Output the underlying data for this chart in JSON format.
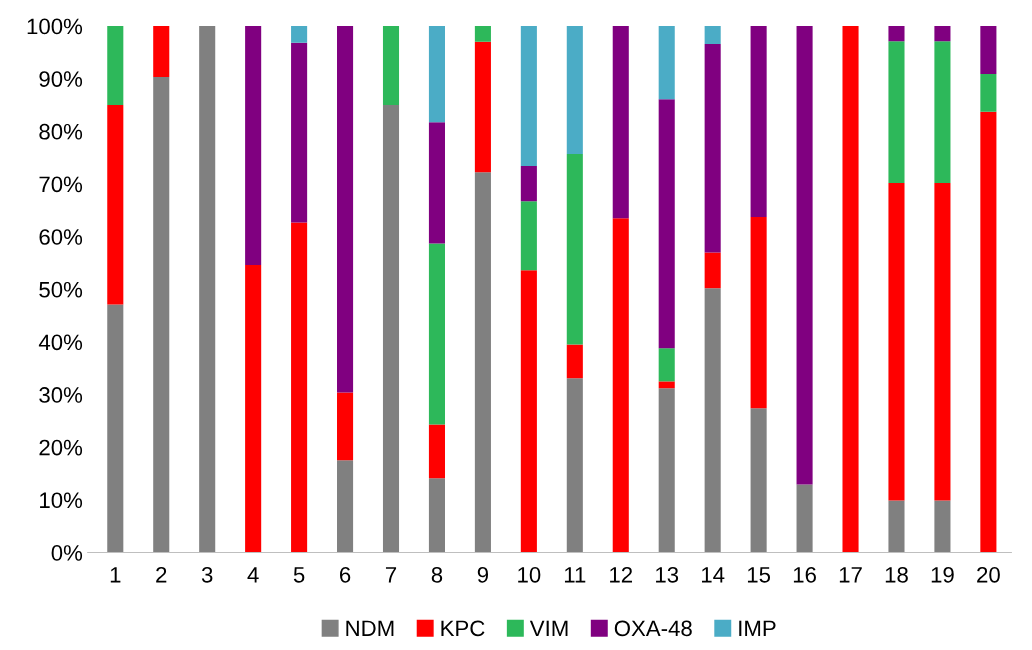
{
  "chart_data": {
    "type": "bar",
    "stacked": true,
    "categories": [
      "1",
      "2",
      "3",
      "4",
      "5",
      "6",
      "7",
      "8",
      "9",
      "10",
      "11",
      "12",
      "13",
      "14",
      "15",
      "16",
      "17",
      "18",
      "19",
      "20"
    ],
    "series": [
      {
        "name": "NDM",
        "color": "#808080",
        "values": [
          47.1,
          90.3,
          100,
          0,
          0,
          17.5,
          85.0,
          14.1,
          72.2,
          0,
          33.1,
          0,
          31.2,
          50.2,
          27.4,
          12.9,
          0,
          9.9,
          9.9,
          0
        ]
      },
      {
        "name": "KPC",
        "color": "#ff0000",
        "values": [
          37.9,
          9.7,
          0,
          54.6,
          62.7,
          12.9,
          0,
          10.2,
          24.8,
          53.6,
          6.4,
          63.5,
          1.3,
          6.8,
          36.3,
          0,
          100,
          60.3,
          60.3,
          83.7
        ]
      },
      {
        "name": "VIM",
        "color": "#2db85a",
        "values": [
          15.0,
          0,
          0,
          0,
          0,
          0,
          15.0,
          34.4,
          3.0,
          13.1,
          36.2,
          0,
          6.3,
          0,
          0,
          0,
          0,
          26.9,
          26.9,
          7.2
        ]
      },
      {
        "name": "OXA-48",
        "color": "#800080",
        "values": [
          0,
          0,
          0,
          45.4,
          34.1,
          69.6,
          0,
          23.0,
          0,
          6.7,
          0,
          36.5,
          47.3,
          39.6,
          36.3,
          87.1,
          0,
          2.9,
          2.9,
          9.1
        ]
      },
      {
        "name": "IMP",
        "color": "#4bacc6",
        "values": [
          0,
          0,
          0,
          0,
          3.2,
          0,
          0,
          18.3,
          0,
          26.6,
          24.3,
          0,
          13.9,
          3.4,
          0,
          0,
          0,
          0,
          0,
          0
        ]
      }
    ],
    "ylim": [
      0,
      100
    ],
    "yticks": [
      {
        "value": 0,
        "label": "0%"
      },
      {
        "value": 10,
        "label": "10%"
      },
      {
        "value": 20,
        "label": "20%"
      },
      {
        "value": 30,
        "label": "30%"
      },
      {
        "value": 40,
        "label": "40%"
      },
      {
        "value": 50,
        "label": "50%"
      },
      {
        "value": 60,
        "label": "60%"
      },
      {
        "value": 70,
        "label": "70%"
      },
      {
        "value": 80,
        "label": "80%"
      },
      {
        "value": 90,
        "label": "90%"
      },
      {
        "value": 100,
        "label": "100%"
      }
    ],
    "grid": false,
    "legend": "bottom"
  }
}
